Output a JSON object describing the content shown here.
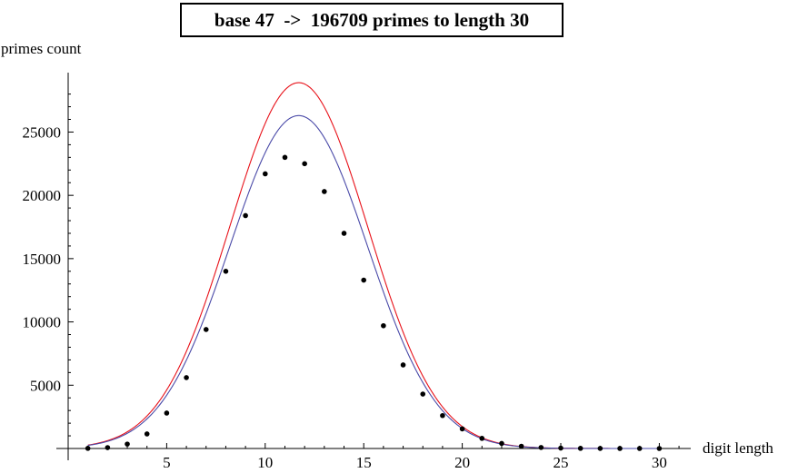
{
  "chart_data": {
    "type": "scatter",
    "title": "base 47  ->  196709 primes to length 30",
    "xlabel": "digit length",
    "ylabel": "primes count",
    "xlim": [
      0,
      31
    ],
    "ylim": [
      0,
      29000
    ],
    "x_ticks": [
      5,
      10,
      15,
      20,
      25,
      30
    ],
    "y_ticks": [
      5000,
      10000,
      15000,
      20000,
      25000
    ],
    "x_tick_labels": [
      "5",
      "10",
      "15",
      "20",
      "25",
      "30"
    ],
    "y_tick_labels": [
      "5000",
      "10000",
      "15000",
      "20000",
      "25000"
    ],
    "grid": false,
    "legend": "none",
    "points": {
      "x": [
        1,
        2,
        3,
        4,
        5,
        6,
        7,
        8,
        9,
        10,
        11,
        12,
        13,
        14,
        15,
        16,
        17,
        18,
        19,
        20,
        21,
        22,
        23,
        24,
        25,
        26,
        27,
        28,
        29,
        30
      ],
      "y": [
        10,
        70,
        350,
        1150,
        2800,
        5600,
        9400,
        14000,
        18400,
        21700,
        23000,
        22500,
        20300,
        17000,
        13300,
        9700,
        6600,
        4300,
        2600,
        1550,
        800,
        400,
        180,
        80,
        30,
        10,
        5,
        2,
        1,
        0
      ]
    },
    "curves": [
      {
        "peak_x": 11.7,
        "peak_y": 28900,
        "sigma": 3.5
      },
      {
        "peak_x": 11.7,
        "peak_y": 26300,
        "sigma": 3.5
      }
    ],
    "colors": {
      "points": "#000000",
      "curve_red": "#e8121a",
      "curve_blue": "#4a4aa8",
      "axis": "#000000"
    }
  }
}
